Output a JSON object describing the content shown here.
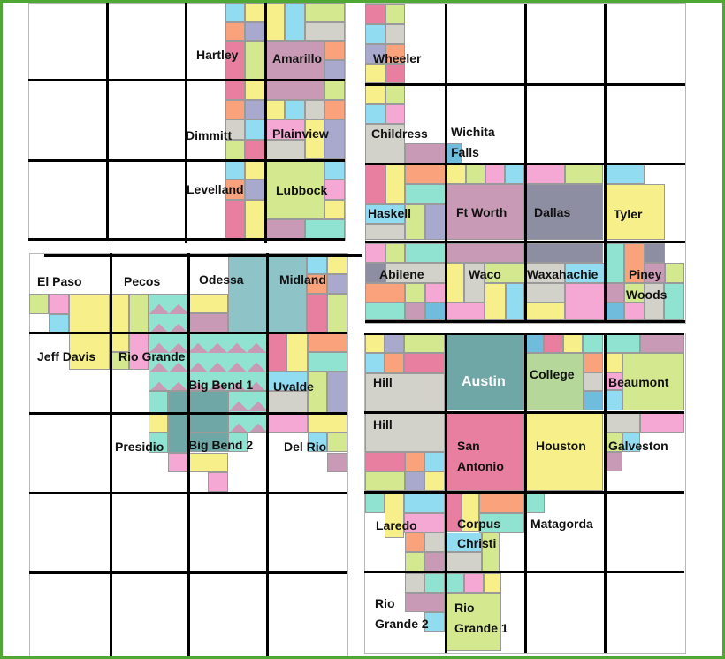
{
  "palette": {
    "pk": "#e87fa0",
    "lp": "#f5a8d4",
    "y": "#f7f08a",
    "g": "#d4e98f",
    "c": "#92dcf2",
    "o": "#f9a27c",
    "gr": "#d2d2cb",
    "pu": "#a9a9cd",
    "m": "#c99ab5",
    "t": "#90e2d1",
    "dt": "#6fa6a6",
    "lt": "#8ec4c8",
    "bl": "#6fbcdc",
    "dg": "#8e8ea2",
    "cg": "#b5d89a",
    "w": "#ffffff",
    "border": "#4ea833"
  },
  "regions": {
    "hartley": "Hartley",
    "amarillo": "Amarillo",
    "dimmitt": "Dimmitt",
    "plainview": "Plainview",
    "levelland": "Levelland",
    "lubbock": "Lubbock",
    "el_paso": "El Paso",
    "pecos": "Pecos",
    "odessa": "Odessa",
    "midland": "Midland",
    "jeff_davis": "Jeff Davis",
    "rio_grande": "Rio Grande",
    "big_bend_1": "Big Bend 1",
    "uvalde": "Uvalde",
    "presidio": "Presidio",
    "big_bend_2": "Big Bend 2",
    "del_rio": "Del Rio",
    "wheeler": "Wheeler",
    "childress": "Childress",
    "wichita": "Wichita",
    "falls": "Falls",
    "haskell": "Haskell",
    "ft_worth": "Ft Worth",
    "dallas": "Dallas",
    "tyler": "Tyler",
    "abilene": "Abilene",
    "waco": "Waco",
    "waxahachie": "Waxahachie",
    "piney": "Piney",
    "woods": "Woods",
    "hill_1": "Hill",
    "austin": "Austin",
    "college": "College",
    "beaumont": "Beaumont",
    "hill_2": "Hill",
    "san": "San",
    "antonio": "Antonio",
    "houston": "Houston",
    "galveston": "Galveston",
    "laredo": "Laredo",
    "corpus": "Corpus",
    "christi": "Christi",
    "matagorda": "Matagorda",
    "rio_2": "Rio",
    "grande_2": "Grande 2",
    "rio_1": "Rio",
    "grande_1": "Grande 1"
  }
}
